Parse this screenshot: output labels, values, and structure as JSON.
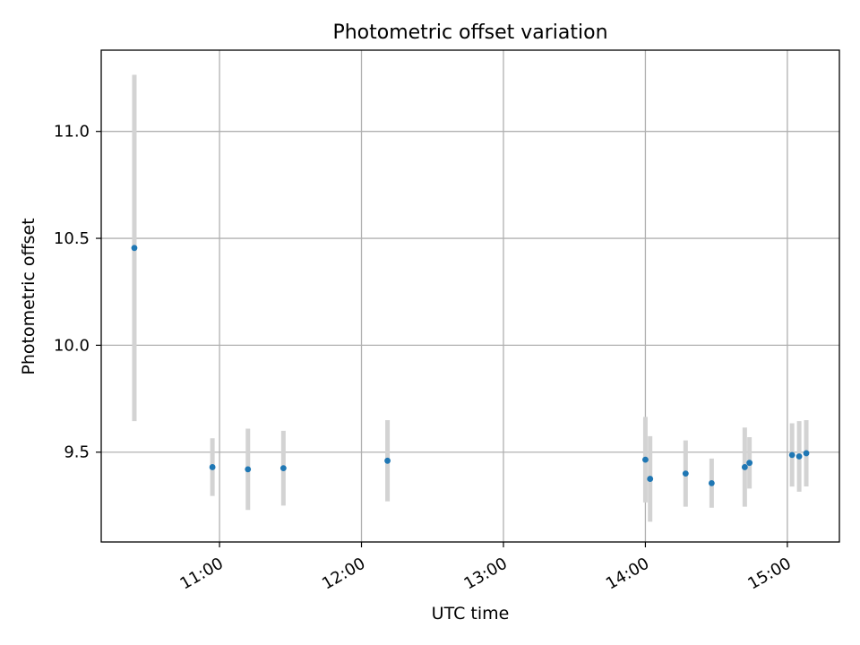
{
  "chart_data": {
    "type": "scatter",
    "title": "Photometric offset variation",
    "xlabel": "UTC time",
    "ylabel": "Photometric offset",
    "x_tick_labels": [
      "11:00",
      "12:00",
      "13:00",
      "14:00",
      "15:00"
    ],
    "x_tick_hours": [
      11,
      12,
      13,
      14,
      15
    ],
    "y_ticks": [
      9.5,
      10.0,
      10.5,
      11.0
    ],
    "y_tick_labels": [
      "9.5",
      "10.0",
      "10.5",
      "11.0"
    ],
    "xlim": [
      "10:10",
      "15:22"
    ],
    "ylim": [
      9.08,
      11.38
    ],
    "grid": true,
    "colors": {
      "point": "#1f77b4",
      "errorbar": "#d3d3d3",
      "grid": "#b0b0b0",
      "axes": "#000000"
    },
    "series": [
      {
        "points": [
          {
            "t": "10:24",
            "y": 10.455,
            "err": 0.81
          },
          {
            "t": "10:57",
            "y": 9.43,
            "err": 0.135
          },
          {
            "t": "11:12",
            "y": 9.42,
            "err": 0.19
          },
          {
            "t": "11:27",
            "y": 9.425,
            "err": 0.175
          },
          {
            "t": "12:11",
            "y": 9.46,
            "err": 0.19
          },
          {
            "t": "14:00",
            "y": 9.465,
            "err": 0.2
          },
          {
            "t": "14:02",
            "y": 9.375,
            "err": 0.2
          },
          {
            "t": "14:17",
            "y": 9.4,
            "err": 0.155
          },
          {
            "t": "14:28",
            "y": 9.355,
            "err": 0.115
          },
          {
            "t": "14:42",
            "y": 9.43,
            "err": 0.185
          },
          {
            "t": "14:44",
            "y": 9.45,
            "err": 0.12
          },
          {
            "t": "15:02",
            "y": 9.487,
            "err": 0.148
          },
          {
            "t": "15:05",
            "y": 9.48,
            "err": 0.165
          },
          {
            "t": "15:08",
            "y": 9.495,
            "err": 0.155
          }
        ]
      }
    ]
  }
}
